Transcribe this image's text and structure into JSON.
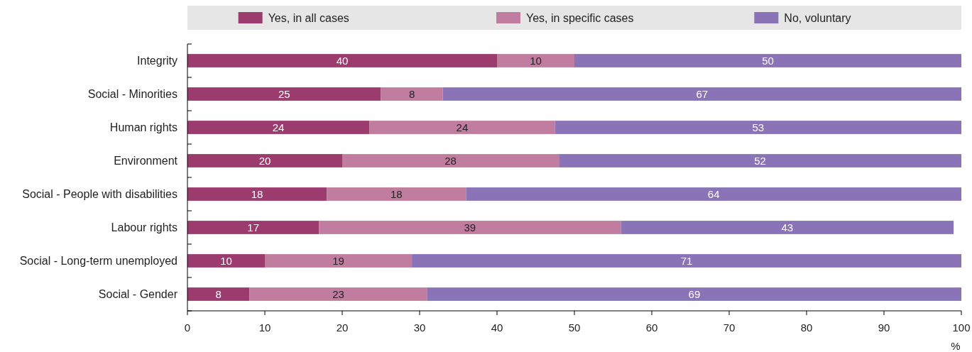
{
  "chart_data": {
    "type": "bar",
    "orientation": "horizontal",
    "stacked": true,
    "xlabel": "%",
    "categories": [
      "Integrity",
      "Social - Minorities",
      "Human rights",
      "Environment",
      "Social - People with disabilities",
      "Labour rights",
      "Social - Long-term unemployed",
      "Social - Gender"
    ],
    "series": [
      {
        "name": "Yes, in all cases",
        "color": "#9c3b6e",
        "values": [
          40,
          25,
          23.5,
          20,
          18,
          17,
          10,
          8
        ],
        "value_labels": [
          "40",
          "25",
          "24",
          "20",
          "18",
          "17",
          "10",
          "8"
        ]
      },
      {
        "name": "Yes, in specific cases",
        "color": "#c17d9f",
        "values": [
          10,
          8,
          24,
          28,
          18,
          39,
          19,
          23
        ],
        "value_labels": [
          "10",
          "8",
          "24",
          "28",
          "18",
          "39",
          "19",
          "23"
        ]
      },
      {
        "name": "No, voluntary",
        "color": "#8a73b6",
        "values": [
          50,
          67,
          52.5,
          52,
          64,
          43,
          71,
          69
        ],
        "value_labels": [
          "50",
          "67",
          "53",
          "52",
          "64",
          "43",
          "71",
          "69"
        ]
      }
    ],
    "xlim": [
      0,
      100
    ],
    "xticks": [
      0,
      10,
      20,
      30,
      40,
      50,
      60,
      70,
      80,
      90,
      100
    ],
    "legend": "top",
    "grid": false
  }
}
